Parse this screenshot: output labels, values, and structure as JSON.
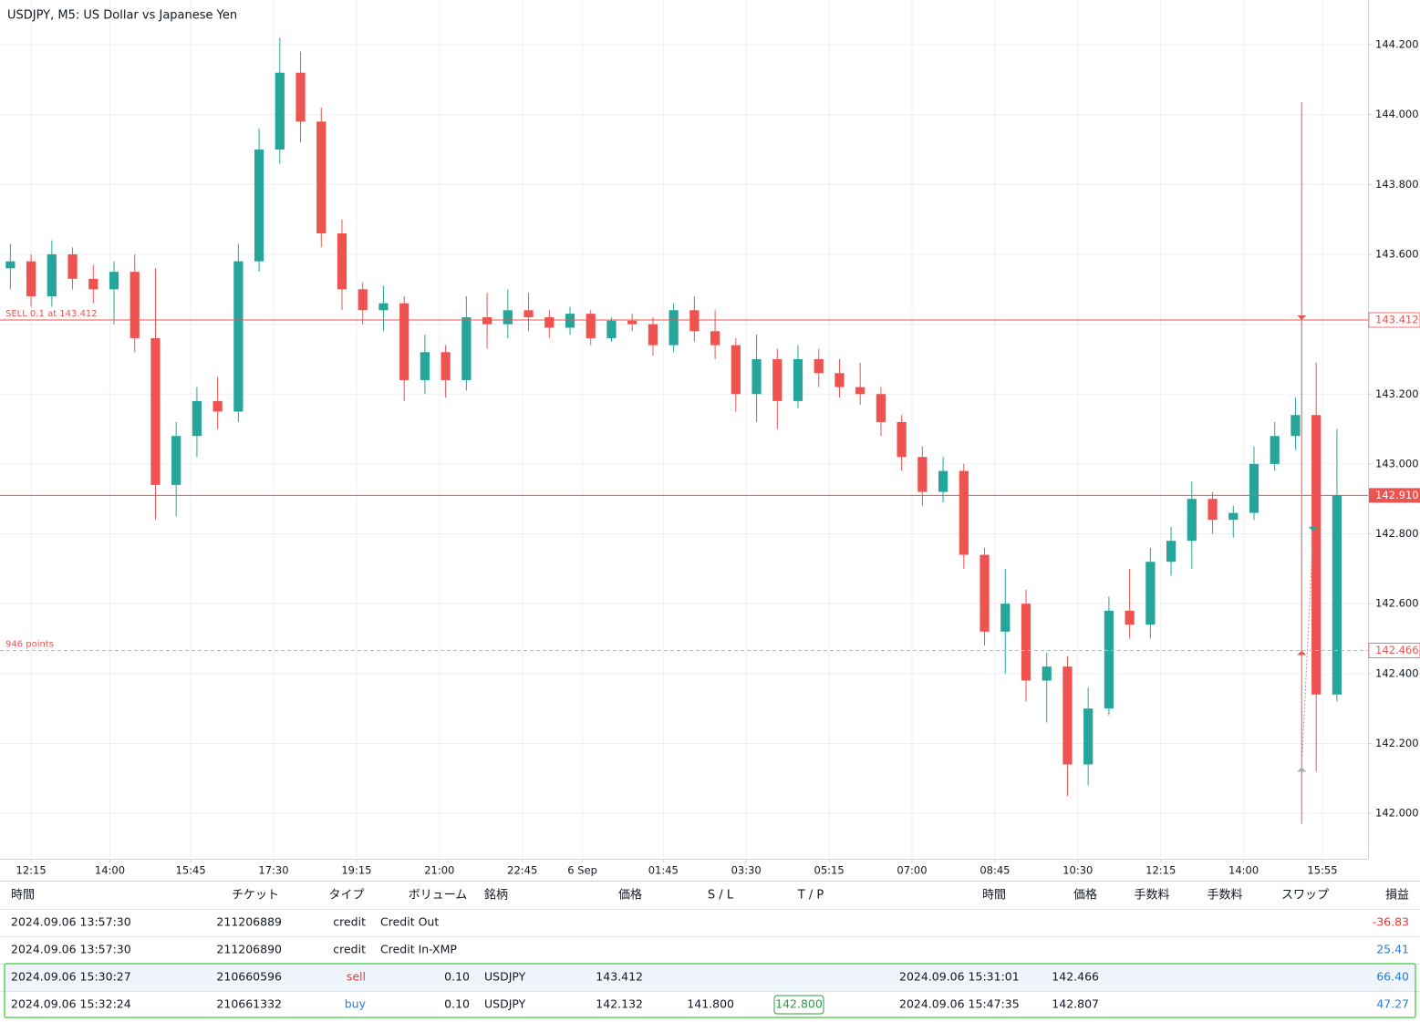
{
  "chart_data": {
    "type": "candlestick",
    "title": "USDJPY, M5: US Dollar vs Japanese Yen",
    "up_color": "#26a69a",
    "down_color": "#ef5350",
    "ylim": [
      141.875,
      144.328
    ],
    "yticks": [
      {
        "value": 142.0,
        "label": "142.000"
      },
      {
        "value": 142.2,
        "label": "142.200"
      },
      {
        "value": 142.4,
        "label": "142.400"
      },
      {
        "value": 142.6,
        "label": "142.600"
      },
      {
        "value": 142.8,
        "label": "142.800"
      },
      {
        "value": 143.0,
        "label": "143.000"
      },
      {
        "value": 143.2,
        "label": "143.200"
      },
      {
        "value": 143.4,
        "label": "143.400"
      },
      {
        "value": 143.6,
        "label": "143.600"
      },
      {
        "value": 143.8,
        "label": "143.800"
      },
      {
        "value": 144.0,
        "label": "144.000"
      },
      {
        "value": 144.2,
        "label": "144.200"
      }
    ],
    "xlim": [
      -0.5,
      65.5
    ],
    "xticks": [
      {
        "value": 1.0,
        "label": "12:15"
      },
      {
        "value": 4.8,
        "label": "14:00"
      },
      {
        "value": 8.7,
        "label": "15:45"
      },
      {
        "value": 12.7,
        "label": "17:30"
      },
      {
        "value": 16.7,
        "label": "19:15"
      },
      {
        "value": 20.7,
        "label": "21:00"
      },
      {
        "value": 24.7,
        "label": "22:45"
      },
      {
        "value": 27.6,
        "label": "6 Sep"
      },
      {
        "value": 31.5,
        "label": "01:45"
      },
      {
        "value": 35.5,
        "label": "03:30"
      },
      {
        "value": 39.5,
        "label": "05:15"
      },
      {
        "value": 43.5,
        "label": "07:00"
      },
      {
        "value": 47.5,
        "label": "08:45"
      },
      {
        "value": 51.5,
        "label": "10:30"
      },
      {
        "value": 55.5,
        "label": "12:15"
      },
      {
        "value": 59.5,
        "label": "14:00"
      },
      {
        "value": 63.3,
        "label": "15:55"
      }
    ],
    "grid": true,
    "candles": [
      [
        143.56,
        143.63,
        143.5,
        143.58
      ],
      [
        143.58,
        143.6,
        143.45,
        143.48
      ],
      [
        143.48,
        143.64,
        143.45,
        143.6
      ],
      [
        143.6,
        143.62,
        143.5,
        143.53
      ],
      [
        143.53,
        143.57,
        143.46,
        143.5
      ],
      [
        143.5,
        143.58,
        143.4,
        143.55
      ],
      [
        143.55,
        143.6,
        143.32,
        143.36
      ],
      [
        143.36,
        143.56,
        142.84,
        142.94
      ],
      [
        142.94,
        143.12,
        142.85,
        143.08
      ],
      [
        143.08,
        143.22,
        143.02,
        143.18
      ],
      [
        143.18,
        143.25,
        143.1,
        143.15
      ],
      [
        143.15,
        143.63,
        143.12,
        143.58
      ],
      [
        143.58,
        143.96,
        143.55,
        143.9
      ],
      [
        143.9,
        144.22,
        143.86,
        144.12
      ],
      [
        144.12,
        144.18,
        143.92,
        143.98
      ],
      [
        143.98,
        144.02,
        143.62,
        143.66
      ],
      [
        143.66,
        143.7,
        143.44,
        143.5
      ],
      [
        143.5,
        143.52,
        143.4,
        143.44
      ],
      [
        143.44,
        143.51,
        143.38,
        143.46
      ],
      [
        143.46,
        143.48,
        143.18,
        143.24
      ],
      [
        143.24,
        143.37,
        143.2,
        143.32
      ],
      [
        143.32,
        143.34,
        143.19,
        143.24
      ],
      [
        143.24,
        143.48,
        143.21,
        143.42
      ],
      [
        143.42,
        143.49,
        143.33,
        143.4
      ],
      [
        143.4,
        143.5,
        143.36,
        143.44
      ],
      [
        143.44,
        143.49,
        143.38,
        143.42
      ],
      [
        143.42,
        143.44,
        143.36,
        143.39
      ],
      [
        143.39,
        143.45,
        143.37,
        143.43
      ],
      [
        143.43,
        143.44,
        143.34,
        143.36
      ],
      [
        143.36,
        143.42,
        143.35,
        143.41
      ],
      [
        143.41,
        143.43,
        143.38,
        143.4
      ],
      [
        143.4,
        143.42,
        143.31,
        143.34
      ],
      [
        143.34,
        143.46,
        143.32,
        143.44
      ],
      [
        143.44,
        143.48,
        143.35,
        143.38
      ],
      [
        143.38,
        143.44,
        143.3,
        143.34
      ],
      [
        143.34,
        143.36,
        143.15,
        143.2
      ],
      [
        143.2,
        143.37,
        143.12,
        143.3
      ],
      [
        143.3,
        143.33,
        143.1,
        143.18
      ],
      [
        143.18,
        143.34,
        143.16,
        143.3
      ],
      [
        143.3,
        143.33,
        143.22,
        143.26
      ],
      [
        143.26,
        143.3,
        143.19,
        143.22
      ],
      [
        143.22,
        143.29,
        143.17,
        143.2
      ],
      [
        143.2,
        143.22,
        143.08,
        143.12
      ],
      [
        143.12,
        143.14,
        142.98,
        143.02
      ],
      [
        143.02,
        143.05,
        142.88,
        142.92
      ],
      [
        142.92,
        143.02,
        142.89,
        142.98
      ],
      [
        142.98,
        143.0,
        142.7,
        142.74
      ],
      [
        142.74,
        142.76,
        142.48,
        142.52
      ],
      [
        142.52,
        142.7,
        142.4,
        142.6
      ],
      [
        142.6,
        142.64,
        142.32,
        142.38
      ],
      [
        142.38,
        142.46,
        142.26,
        142.42
      ],
      [
        142.42,
        142.45,
        142.05,
        142.14
      ],
      [
        142.14,
        142.36,
        142.08,
        142.3
      ],
      [
        142.3,
        142.62,
        142.28,
        142.58
      ],
      [
        142.58,
        142.7,
        142.5,
        142.54
      ],
      [
        142.54,
        142.76,
        142.5,
        142.72
      ],
      [
        142.72,
        142.82,
        142.68,
        142.78
      ],
      [
        142.78,
        142.95,
        142.7,
        142.9
      ],
      [
        142.9,
        142.92,
        142.8,
        142.84
      ],
      [
        142.84,
        142.88,
        142.79,
        142.86
      ],
      [
        142.86,
        143.05,
        142.84,
        143.0
      ],
      [
        143.0,
        143.12,
        142.98,
        143.08
      ],
      [
        143.08,
        143.19,
        143.04,
        143.14
      ],
      [
        143.14,
        143.29,
        142.12,
        142.34
      ],
      [
        142.34,
        143.1,
        142.32,
        142.91
      ]
    ],
    "price_lines": [
      {
        "value": 143.412,
        "label": "143.412",
        "text": "SELL 0.1 at 143.412",
        "color": "#ef5350",
        "dashed": false,
        "filled": false
      },
      {
        "value": 142.91,
        "label": "142.910",
        "color": "#ef5350",
        "dashed": false,
        "filled": true
      },
      {
        "value": 142.466,
        "label": "142.466",
        "text": "946 points",
        "color": "#ef5350",
        "dashed": true,
        "filled": false
      }
    ],
    "trade_span": {
      "x": 62.3,
      "top": 144.035,
      "bottom": 141.97,
      "color": "#ef5350"
    },
    "trades": [
      {
        "side": "sell",
        "x_entry": 62.3,
        "entry": 143.412,
        "x_exit": 62.3,
        "exit": 142.466,
        "color": "#ef5350"
      },
      {
        "side": "buy",
        "x_entry": 62.3,
        "entry": 142.132,
        "x_exit": 62.85,
        "exit": 142.807,
        "color": "#26a69a"
      }
    ]
  },
  "table": {
    "headers": [
      "時間",
      "チケット",
      "タイプ",
      "ボリューム",
      "銘柄",
      "価格",
      "S / L",
      "T / P",
      "時間",
      "価格",
      "手数料",
      "手数料",
      "スワップ",
      "損益"
    ],
    "rows": [
      [
        "2024.09.06 13:57:30",
        "211206889",
        "credit",
        "Credit Out",
        null,
        null,
        null,
        null,
        null,
        null,
        null,
        null,
        null,
        "-36.83"
      ],
      [
        "2024.09.06 13:57:30",
        "211206890",
        "credit",
        "Credit In-XMP",
        null,
        null,
        null,
        null,
        null,
        null,
        null,
        null,
        null,
        "25.41"
      ],
      [
        "2024.09.06 15:30:27",
        "210660596",
        "sell",
        "0.10",
        "USDJPY",
        "143.412",
        null,
        null,
        "2024.09.06 15:31:01",
        "142.466",
        null,
        null,
        null,
        "66.40"
      ],
      [
        "2024.09.06 15:32:24",
        "210661332",
        "buy",
        "0.10",
        "USDJPY",
        "142.132",
        "141.800",
        "142.800",
        "2024.09.06 15:47:35",
        "142.807",
        null,
        null,
        null,
        "47.27"
      ]
    ]
  }
}
